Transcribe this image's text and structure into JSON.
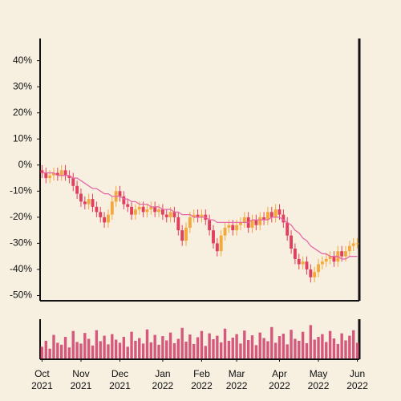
{
  "chart_data": {
    "type": "candlestick",
    "categories": [
      "Oct\n2021",
      null,
      null,
      null,
      null,
      null,
      null,
      null,
      null,
      null,
      "Nov\n2021",
      null,
      null,
      null,
      null,
      null,
      null,
      null,
      null,
      null,
      "Dec\n2021",
      null,
      null,
      null,
      null,
      null,
      null,
      null,
      null,
      null,
      null,
      "Jan\n2022",
      null,
      null,
      null,
      null,
      null,
      null,
      null,
      null,
      null,
      "Feb\n2022",
      null,
      null,
      null,
      null,
      null,
      null,
      null,
      null,
      "Mar\n2022",
      null,
      null,
      null,
      null,
      null,
      null,
      null,
      null,
      null,
      null,
      "Apr\n2022",
      null,
      null,
      null,
      null,
      null,
      null,
      null,
      null,
      null,
      "May\n2022",
      null,
      null,
      null,
      null,
      null,
      null,
      null,
      null,
      null,
      "Jun\n2022"
    ],
    "open": [
      -2,
      -3,
      -5,
      -4,
      -3,
      -4,
      -2,
      -4,
      -5,
      -8,
      -11,
      -14,
      -15,
      -13,
      -16,
      -18,
      -20,
      -22,
      -19,
      -14,
      -10,
      -12,
      -15,
      -16,
      -19,
      -17,
      -16,
      -18,
      -17,
      -16,
      -18,
      -17,
      -19,
      -20,
      -18,
      -20,
      -25,
      -29,
      -24,
      -20,
      -19,
      -20,
      -19,
      -21,
      -25,
      -30,
      -33,
      -27,
      -24,
      -23,
      -25,
      -23,
      -22,
      -20,
      -24,
      -21,
      -23,
      -20,
      -21,
      -18,
      -20,
      -17,
      -19,
      -22,
      -27,
      -32,
      -36,
      -38,
      -37,
      -40,
      -43,
      -41,
      -38,
      -37,
      -36,
      -35,
      -37,
      -33,
      -35,
      -33,
      -31,
      -30
    ],
    "high": [
      0,
      -1,
      -2,
      -1,
      -1,
      0,
      0,
      -2,
      -3,
      -6,
      -9,
      -12,
      -11,
      -11,
      -14,
      -16,
      -18,
      -17,
      -12,
      -8,
      -8,
      -10,
      -13,
      -14,
      -15,
      -14,
      -14,
      -15,
      -14,
      -14,
      -15,
      -15,
      -17,
      -16,
      -16,
      -18,
      -23,
      -22,
      -18,
      -17,
      -17,
      -17,
      -17,
      -19,
      -23,
      -28,
      -25,
      -22,
      -21,
      -21,
      -21,
      -20,
      -18,
      -18,
      -19,
      -19,
      -18,
      -18,
      -16,
      -16,
      -15,
      -15,
      -17,
      -20,
      -25,
      -30,
      -34,
      -35,
      -35,
      -38,
      -39,
      -36,
      -35,
      -34,
      -33,
      -33,
      -31,
      -31,
      -31,
      -29,
      -28,
      -28
    ],
    "low": [
      -5,
      -7,
      -7,
      -6,
      -6,
      -6,
      -6,
      -7,
      -10,
      -13,
      -16,
      -17,
      -17,
      -18,
      -20,
      -22,
      -24,
      -24,
      -21,
      -16,
      -14,
      -17,
      -18,
      -21,
      -21,
      -19,
      -20,
      -20,
      -19,
      -20,
      -20,
      -21,
      -22,
      -22,
      -22,
      -27,
      -31,
      -31,
      -26,
      -22,
      -22,
      -22,
      -23,
      -27,
      -32,
      -35,
      -35,
      -29,
      -26,
      -27,
      -27,
      -25,
      -24,
      -26,
      -26,
      -25,
      -25,
      -23,
      -23,
      -22,
      -22,
      -21,
      -24,
      -29,
      -34,
      -38,
      -40,
      -40,
      -42,
      -45,
      -45,
      -43,
      -40,
      -39,
      -38,
      -39,
      -39,
      -37,
      -37,
      -35,
      -33,
      -32
    ],
    "close": [
      -3,
      -5,
      -4,
      -3,
      -4,
      -2,
      -4,
      -5,
      -8,
      -11,
      -14,
      -15,
      -13,
      -16,
      -18,
      -20,
      -22,
      -19,
      -14,
      -10,
      -12,
      -15,
      -16,
      -19,
      -17,
      -16,
      -18,
      -17,
      -16,
      -18,
      -17,
      -19,
      -20,
      -18,
      -20,
      -25,
      -29,
      -24,
      -20,
      -19,
      -20,
      -19,
      -21,
      -25,
      -30,
      -33,
      -27,
      -24,
      -23,
      -25,
      -23,
      -22,
      -20,
      -24,
      -21,
      -23,
      -20,
      -21,
      -18,
      -20,
      -17,
      -19,
      -22,
      -27,
      -32,
      -36,
      -38,
      -37,
      -40,
      -43,
      -41,
      -38,
      -37,
      -36,
      -35,
      -37,
      -33,
      -35,
      -33,
      -31,
      -30,
      -30
    ],
    "moving_average": [
      -3,
      -3,
      -3,
      -3,
      -4,
      -4,
      -4,
      -4,
      -5,
      -5,
      -6,
      -7,
      -8,
      -9,
      -9,
      -10,
      -11,
      -11,
      -12,
      -12,
      -12,
      -13,
      -13,
      -14,
      -14,
      -15,
      -15,
      -15,
      -16,
      -16,
      -16,
      -17,
      -17,
      -17,
      -18,
      -18,
      -19,
      -19,
      -19,
      -20,
      -20,
      -20,
      -20,
      -21,
      -21,
      -22,
      -22,
      -22,
      -22,
      -22,
      -22,
      -22,
      -22,
      -22,
      -21,
      -21,
      -21,
      -21,
      -21,
      -20,
      -20,
      -20,
      -21,
      -22,
      -23,
      -25,
      -26,
      -28,
      -29,
      -31,
      -32,
      -33,
      -34,
      -34,
      -35,
      -35,
      -35,
      -36,
      -36,
      -35,
      -35,
      -35
    ],
    "volume": [
      30,
      45,
      25,
      60,
      40,
      35,
      55,
      28,
      70,
      42,
      38,
      65,
      50,
      33,
      72,
      44,
      58,
      36,
      62,
      48,
      40,
      55,
      30,
      68,
      45,
      52,
      38,
      74,
      41,
      60,
      35,
      57,
      46,
      66,
      39,
      50,
      78,
      43,
      61,
      37,
      54,
      70,
      32,
      64,
      49,
      58,
      41,
      76,
      45,
      53,
      62,
      38,
      71,
      47,
      59,
      34,
      66,
      52,
      44,
      80,
      40,
      57,
      63,
      36,
      73,
      50,
      45,
      68,
      39,
      85,
      48,
      55,
      62,
      42,
      70,
      51,
      37,
      64,
      46,
      58,
      72,
      40
    ],
    "up_color": "#f3a93c",
    "down_color": "#e0405e",
    "ma_color": "#e66aa8",
    "volume_color": "#d6587c",
    "ylim": [
      -52,
      48.5
    ],
    "yticks": [
      {
        "value": 40,
        "label": "40%"
      },
      {
        "value": 30,
        "label": "30%"
      },
      {
        "value": 20,
        "label": "20%"
      },
      {
        "value": 10,
        "label": "10%"
      },
      {
        "value": 0,
        "label": "0%"
      },
      {
        "value": -10,
        "label": "-10%"
      },
      {
        "value": -20,
        "label": "-20%"
      },
      {
        "value": -30,
        "label": "-30%"
      },
      {
        "value": -40,
        "label": "-40%"
      },
      {
        "value": -50,
        "label": "-50%"
      }
    ],
    "volume_ylim": [
      0,
      100
    ]
  }
}
